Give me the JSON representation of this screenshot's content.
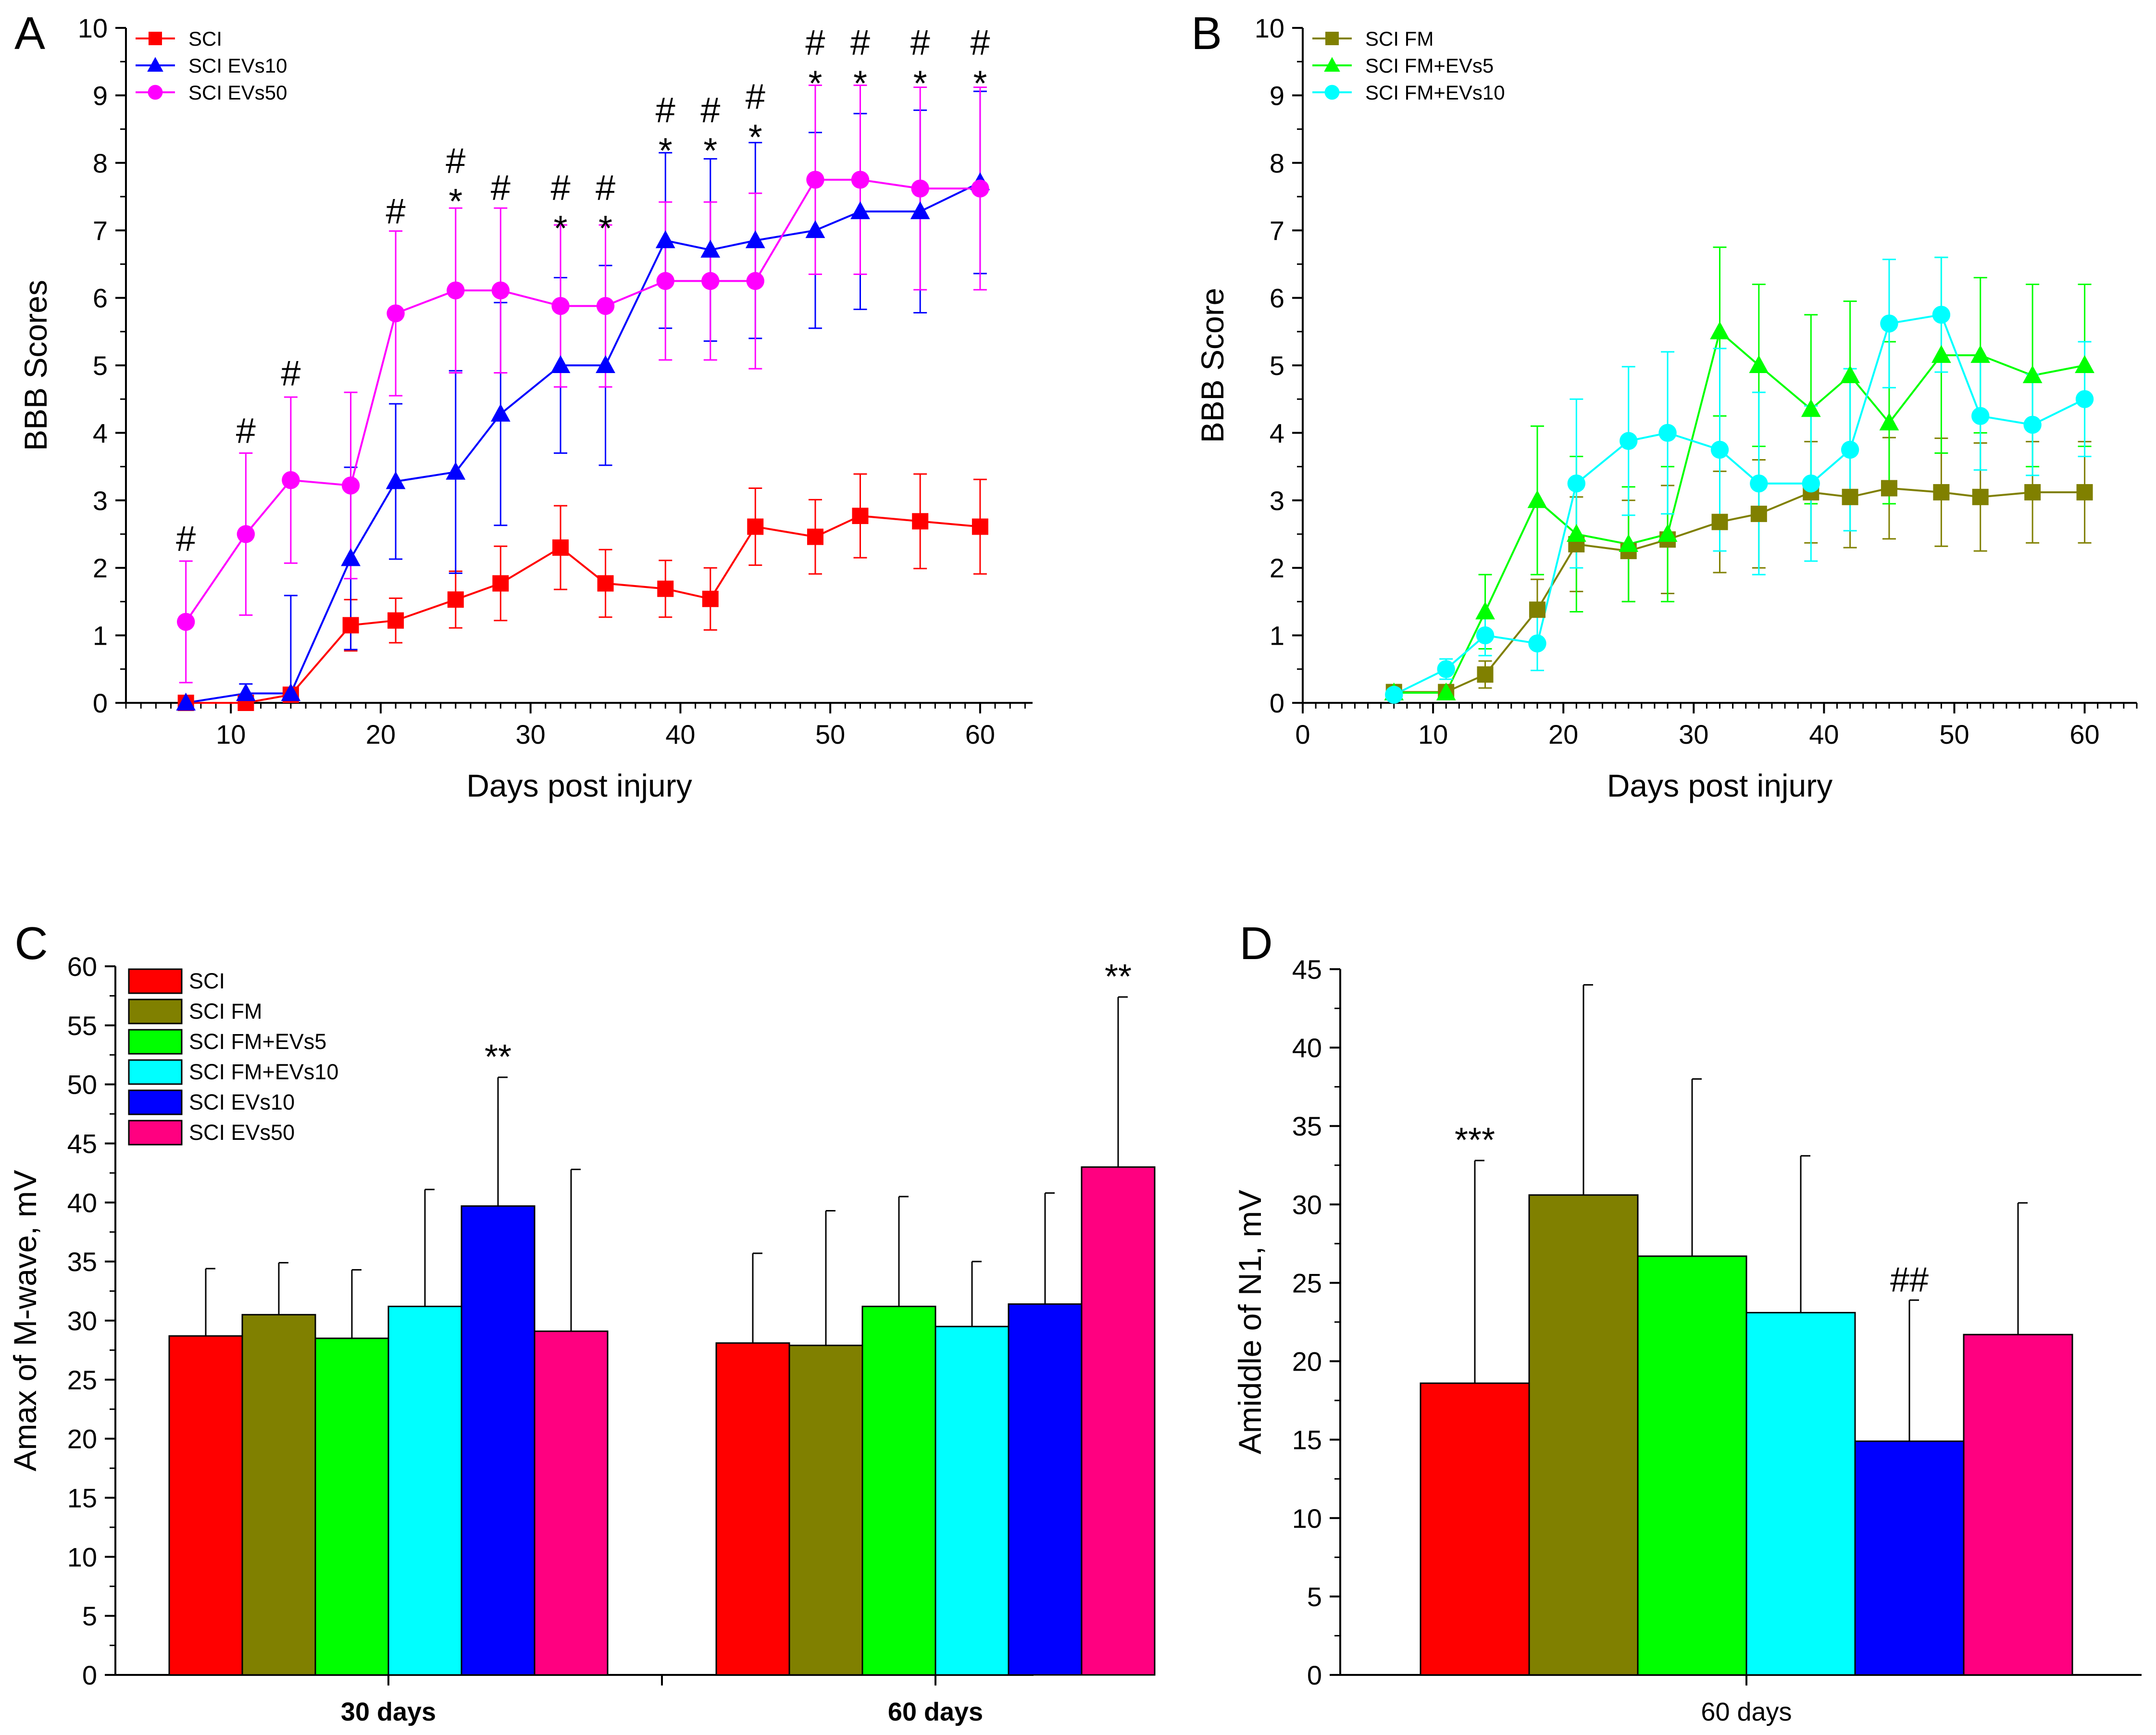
{
  "colors": {
    "SCI": "#ff0000",
    "SCI FM": "#808000",
    "SCI FM+EVs5": "#00ff00",
    "SCI FM+EVs10": "#00ffff",
    "SCI EVs10": "#0000ff",
    "SCI EVs50": "#ff00ff",
    "SCI EVs50 bar": "#ff0080"
  },
  "chart_data": [
    {
      "id": "A",
      "panel_label": "A",
      "type": "line",
      "xlabel": "Days post injury",
      "ylabel": "BBB Scores",
      "xlim": [
        3,
        63.5
      ],
      "ylim": [
        0,
        10
      ],
      "xticks": [
        10,
        20,
        30,
        40,
        50,
        60
      ],
      "yticks": [
        0,
        1,
        2,
        3,
        4,
        5,
        6,
        7,
        8,
        9,
        10
      ],
      "legend": {
        "position": "top-left",
        "entries": [
          "SCI",
          "SCI EVs10",
          "SCI EVs50"
        ]
      },
      "series": [
        {
          "name": "SCI",
          "marker": "square",
          "color": "#ff0000",
          "x": [
            7,
            11,
            14,
            18,
            21,
            25,
            28,
            32,
            35,
            39,
            42,
            45,
            49,
            52,
            56,
            60
          ],
          "y": [
            0,
            0,
            0.12,
            1.15,
            1.22,
            1.53,
            1.77,
            2.3,
            1.77,
            1.69,
            1.54,
            2.61,
            2.46,
            2.77,
            2.69,
            2.61
          ],
          "err": [
            0,
            0,
            0.08,
            0.38,
            0.33,
            0.42,
            0.55,
            0.62,
            0.5,
            0.42,
            0.46,
            0.57,
            0.55,
            0.62,
            0.7,
            0.7
          ]
        },
        {
          "name": "SCI EVs10",
          "marker": "triangle",
          "color": "#0000ff",
          "x": [
            7,
            11,
            14,
            18,
            21,
            25,
            28,
            32,
            35,
            39,
            42,
            45,
            49,
            52,
            56,
            60
          ],
          "y": [
            0,
            0.14,
            0.14,
            2.14,
            3.28,
            3.42,
            4.28,
            5,
            5,
            6.85,
            6.71,
            6.85,
            7,
            7.28,
            7.28,
            7.71
          ],
          "err": [
            0,
            0.14,
            1.45,
            1.35,
            1.15,
            1.5,
            1.65,
            1.3,
            1.48,
            1.3,
            1.35,
            1.45,
            1.45,
            1.45,
            1.5,
            1.35
          ]
        },
        {
          "name": "SCI EVs50",
          "marker": "circle",
          "color": "#ff00ff",
          "x": [
            7,
            11,
            14,
            18,
            21,
            25,
            28,
            32,
            35,
            39,
            42,
            45,
            49,
            52,
            56,
            60
          ],
          "y": [
            1.2,
            2.5,
            3.3,
            3.22,
            5.77,
            6.11,
            6.11,
            5.88,
            5.88,
            6.25,
            6.25,
            6.25,
            7.75,
            7.75,
            7.62,
            7.62
          ],
          "err": [
            0.9,
            1.2,
            1.23,
            1.38,
            1.22,
            1.22,
            1.22,
            1.2,
            1.2,
            1.17,
            1.17,
            1.3,
            1.4,
            1.4,
            1.5,
            1.5
          ]
        }
      ],
      "annotations": [
        {
          "x": 7,
          "text": "#",
          "y": 2.45
        },
        {
          "x": 11,
          "text": "#",
          "y": 4.05
        },
        {
          "x": 14,
          "text": "#",
          "y": 4.9
        },
        {
          "x": 21,
          "text": "#",
          "y": 7.3
        },
        {
          "x": 25,
          "text": "#",
          "y": 8.05
        },
        {
          "x": 25,
          "text": "*",
          "y": 7.45
        },
        {
          "x": 28,
          "text": "#",
          "y": 7.65
        },
        {
          "x": 32,
          "text": "#",
          "y": 7.65
        },
        {
          "x": 32,
          "text": "*",
          "y": 7.05
        },
        {
          "x": 35,
          "text": "#",
          "y": 7.65
        },
        {
          "x": 35,
          "text": "*",
          "y": 7.05
        },
        {
          "x": 39,
          "text": "#",
          "y": 8.8
        },
        {
          "x": 39,
          "text": "*",
          "y": 8.2
        },
        {
          "x": 42,
          "text": "#",
          "y": 8.8
        },
        {
          "x": 42,
          "text": "*",
          "y": 8.2
        },
        {
          "x": 45,
          "text": "#",
          "y": 9.0
        },
        {
          "x": 45,
          "text": "*",
          "y": 8.4
        },
        {
          "x": 49,
          "text": "#",
          "y": 9.8
        },
        {
          "x": 49,
          "text": "*",
          "y": 9.2
        },
        {
          "x": 52,
          "text": "#",
          "y": 9.8
        },
        {
          "x": 52,
          "text": "*",
          "y": 9.2
        },
        {
          "x": 56,
          "text": "#",
          "y": 9.8
        },
        {
          "x": 56,
          "text": "*",
          "y": 9.2
        },
        {
          "x": 60,
          "text": "#",
          "y": 9.8
        },
        {
          "x": 60,
          "text": "*",
          "y": 9.2
        }
      ]
    },
    {
      "id": "B",
      "panel_label": "B",
      "type": "line",
      "xlabel": "Days post injury",
      "ylabel": "BBB Score",
      "xlim": [
        0,
        64
      ],
      "ylim": [
        0,
        10
      ],
      "xticks": [
        0,
        10,
        20,
        30,
        40,
        50,
        60
      ],
      "yticks": [
        0,
        1,
        2,
        3,
        4,
        5,
        6,
        7,
        8,
        9,
        10
      ],
      "legend": {
        "position": "top-left",
        "entries": [
          "SCI FM",
          "SCI FM+EVs5",
          "SCI FM+EVs10"
        ]
      },
      "series": [
        {
          "name": "SCI FM",
          "marker": "square",
          "color": "#808000",
          "x": [
            7,
            11,
            14,
            18,
            21,
            25,
            28,
            32,
            35,
            39,
            42,
            45,
            49,
            52,
            56,
            60
          ],
          "y": [
            0.16,
            0.16,
            0.42,
            1.38,
            2.35,
            2.25,
            2.42,
            2.68,
            2.8,
            3.12,
            3.05,
            3.18,
            3.12,
            3.05,
            3.12,
            3.12
          ],
          "err": [
            0.05,
            0.1,
            0.2,
            0.45,
            0.7,
            0.75,
            0.8,
            0.75,
            0.8,
            0.75,
            0.75,
            0.75,
            0.8,
            0.8,
            0.75,
            0.75
          ]
        },
        {
          "name": "SCI FM+EVs5",
          "marker": "triangle",
          "color": "#00ff00",
          "x": [
            7,
            11,
            14,
            18,
            21,
            25,
            28,
            32,
            35,
            39,
            42,
            45,
            49,
            52,
            56,
            60
          ],
          "y": [
            0.15,
            0.15,
            1.35,
            3,
            2.5,
            2.35,
            2.5,
            5.5,
            5,
            4.35,
            4.85,
            4.15,
            5.15,
            5.15,
            4.85,
            5
          ],
          "err": [
            0.05,
            0.1,
            0.55,
            1.1,
            1.15,
            0.85,
            1.0,
            1.25,
            1.2,
            1.4,
            1.1,
            1.2,
            1.45,
            1.15,
            1.35,
            1.2
          ]
        },
        {
          "name": "SCI FM+EVs10",
          "marker": "circle",
          "color": "#00ffff",
          "x": [
            7,
            11,
            14,
            18,
            21,
            25,
            28,
            32,
            35,
            39,
            42,
            45,
            49,
            52,
            56,
            60
          ],
          "y": [
            0.12,
            0.5,
            1,
            0.88,
            3.25,
            3.88,
            4,
            3.75,
            3.25,
            3.25,
            3.75,
            5.62,
            5.75,
            4.25,
            4.12,
            4.5
          ],
          "err": [
            0.05,
            0.15,
            0.3,
            0.4,
            1.25,
            1.1,
            1.2,
            1.5,
            1.35,
            1.15,
            1.2,
            0.95,
            0.85,
            0.8,
            0.75,
            0.85
          ]
        }
      ]
    },
    {
      "id": "C",
      "panel_label": "C",
      "type": "bar",
      "xlabel": "",
      "ylabel": "Amax of M-wave, mV",
      "ylim": [
        0,
        60
      ],
      "yticks": [
        0,
        5,
        10,
        15,
        20,
        25,
        30,
        35,
        40,
        45,
        50,
        55,
        60
      ],
      "categories": [
        "30 days",
        "60 days"
      ],
      "legend": {
        "position": "top-left",
        "entries": [
          "SCI",
          "SCI FM",
          "SCI FM+EVs5",
          "SCI FM+EVs10",
          "SCI EVs10",
          "SCI EVs50"
        ]
      },
      "series": [
        {
          "name": "SCI",
          "color": "#ff0000",
          "values": [
            28.7,
            28.1
          ],
          "err": [
            5.7,
            7.6
          ]
        },
        {
          "name": "SCI FM",
          "color": "#808000",
          "values": [
            30.5,
            27.9
          ],
          "err": [
            4.4,
            11.4
          ]
        },
        {
          "name": "SCI FM+EVs5",
          "color": "#00ff00",
          "values": [
            28.5,
            31.2
          ],
          "err": [
            5.8,
            9.3
          ]
        },
        {
          "name": "SCI FM+EVs10",
          "color": "#00ffff",
          "values": [
            31.2,
            29.5
          ],
          "err": [
            9.9,
            5.5
          ]
        },
        {
          "name": "SCI EVs10",
          "color": "#0000ff",
          "values": [
            39.7,
            31.4
          ],
          "err": [
            10.9,
            9.4
          ]
        },
        {
          "name": "SCI EVs50",
          "color": "#ff0080",
          "values": [
            29.1,
            43.0
          ],
          "err": [
            13.7,
            14.4
          ]
        }
      ],
      "annotations": [
        {
          "category": "30 days",
          "series": "SCI EVs10",
          "text": "**"
        },
        {
          "category": "60 days",
          "series": "SCI EVs50",
          "text": "**"
        }
      ]
    },
    {
      "id": "D",
      "panel_label": "D",
      "type": "bar",
      "xlabel": "",
      "ylabel": "Amiddle of N1, mV",
      "ylim": [
        0,
        45
      ],
      "yticks": [
        0,
        5,
        10,
        15,
        20,
        25,
        30,
        35,
        40,
        45
      ],
      "categories": [
        "60 days"
      ],
      "series": [
        {
          "name": "SCI",
          "color": "#ff0000",
          "values": [
            18.6
          ],
          "err": [
            14.2
          ]
        },
        {
          "name": "SCI FM",
          "color": "#808000",
          "values": [
            30.6
          ],
          "err": [
            13.4
          ]
        },
        {
          "name": "SCI FM+EVs5",
          "color": "#00ff00",
          "values": [
            26.7
          ],
          "err": [
            11.3
          ]
        },
        {
          "name": "SCI FM+EVs10",
          "color": "#00ffff",
          "values": [
            23.1
          ],
          "err": [
            10.0
          ]
        },
        {
          "name": "SCI EVs10",
          "color": "#0000ff",
          "values": [
            14.9
          ],
          "err": [
            9.0
          ]
        },
        {
          "name": "SCI EVs50",
          "color": "#ff0080",
          "values": [
            21.7
          ],
          "err": [
            8.4
          ]
        }
      ],
      "annotations": [
        {
          "category": "60 days",
          "series": "SCI",
          "text": "***"
        },
        {
          "category": "60 days",
          "series": "SCI EVs10",
          "text": "##"
        }
      ]
    }
  ]
}
